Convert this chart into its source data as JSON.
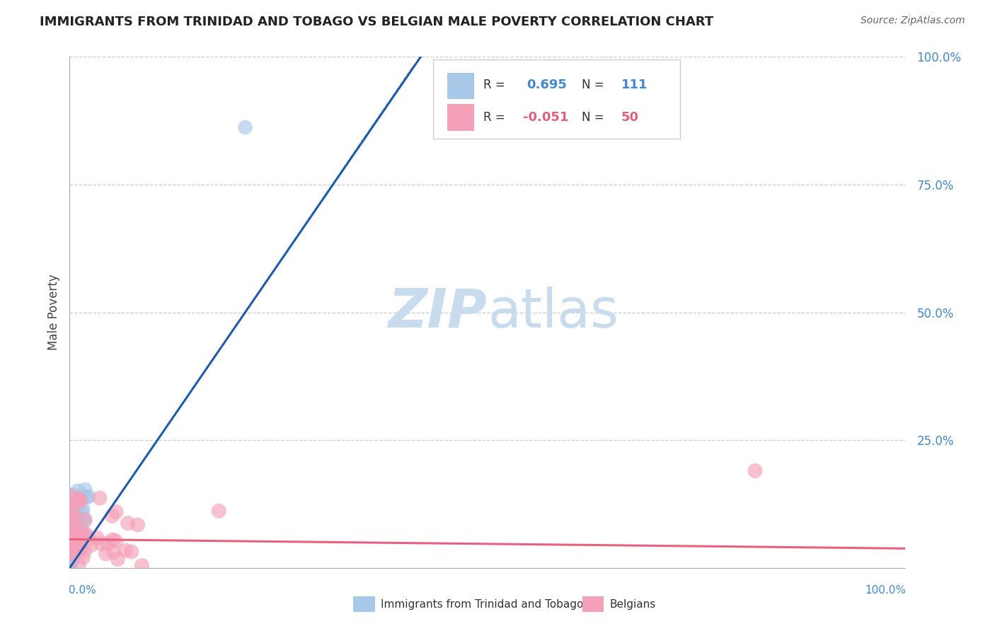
{
  "title": "IMMIGRANTS FROM TRINIDAD AND TOBAGO VS BELGIAN MALE POVERTY CORRELATION CHART",
  "source": "Source: ZipAtlas.com",
  "ylabel": "Male Poverty",
  "legend_label1": "Immigrants from Trinidad and Tobago",
  "legend_label2": "Belgians",
  "R1": 0.695,
  "N1": 111,
  "R2": -0.051,
  "N2": 50,
  "xlim": [
    0,
    1
  ],
  "ylim": [
    0,
    1
  ],
  "color_blue": "#A8C8E8",
  "color_pink": "#F4A0B8",
  "color_blue_line": "#1E5BAD",
  "color_pink_line": "#E86080",
  "color_blue_text": "#4488CC",
  "color_pink_text": "#E06080",
  "watermark_text_color": "#C8DCEE",
  "background_color": "#FFFFFF",
  "grid_color": "#CCCCCC",
  "title_color": "#222222"
}
